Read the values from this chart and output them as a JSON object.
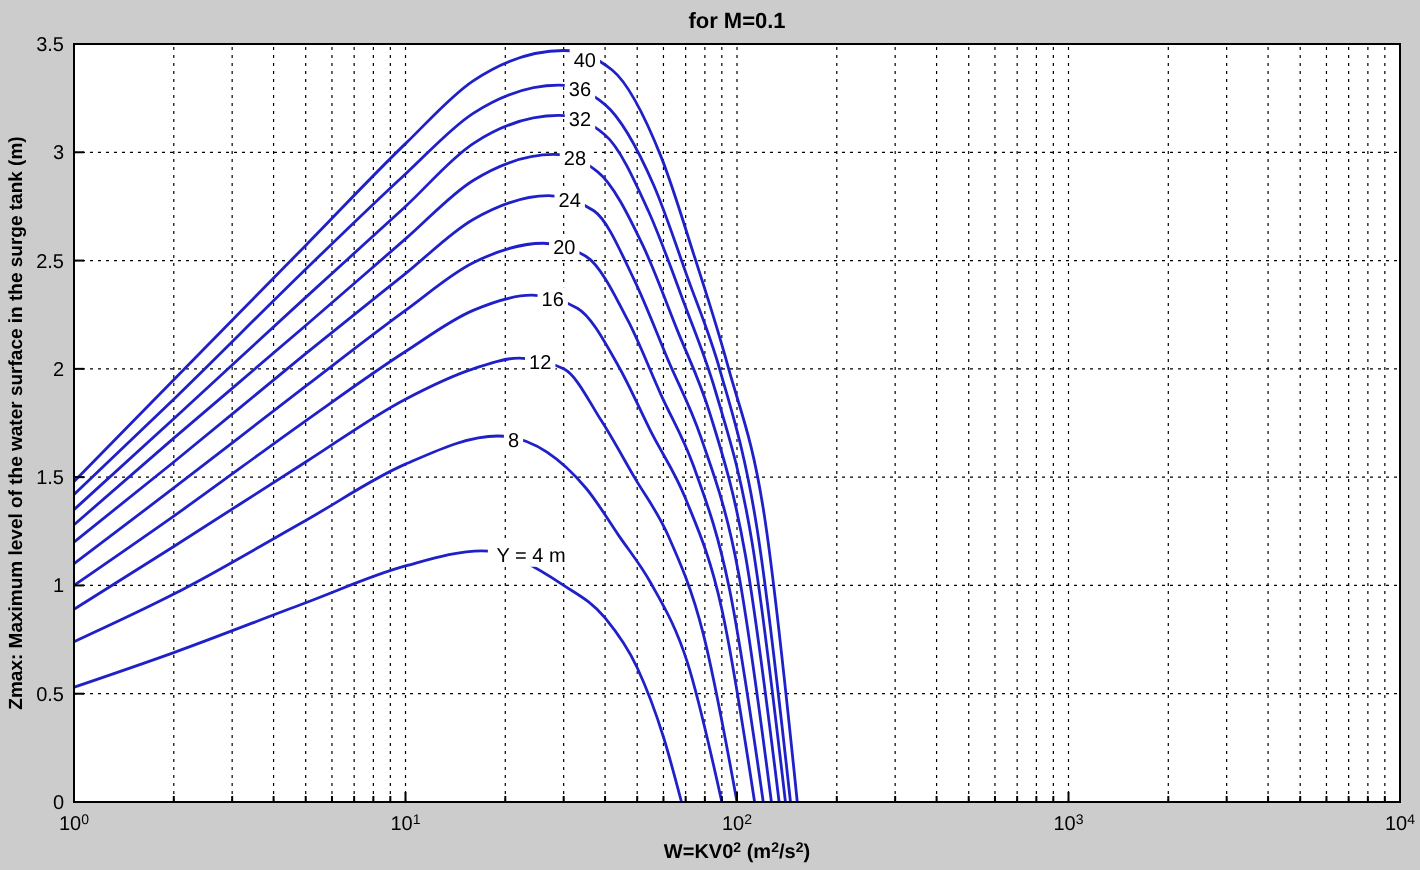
{
  "chart_data": {
    "type": "line",
    "title": "for M=0.1",
    "xlabel": "W=KV0$^{2}$ (m$^{2}$/s$^{2}$)",
    "ylabel": "Zmax: Maximum level of the water surface in the surge tank (m)",
    "log": "x",
    "grid": true,
    "xlim": [
      1,
      10000
    ],
    "ylim": [
      0,
      3.5
    ],
    "xticks": [
      {
        "value": 1,
        "label": "10$^{0}$"
      },
      {
        "value": 2,
        "label": null
      },
      {
        "value": 3,
        "label": null
      },
      {
        "value": 4,
        "label": null
      },
      {
        "value": 5,
        "label": null
      },
      {
        "value": 6,
        "label": null
      },
      {
        "value": 7,
        "label": null
      },
      {
        "value": 8,
        "label": null
      },
      {
        "value": 9,
        "label": null
      },
      {
        "value": 10,
        "label": "10$^{1}$"
      },
      {
        "value": 20,
        "label": null
      },
      {
        "value": 30,
        "label": null
      },
      {
        "value": 40,
        "label": null
      },
      {
        "value": 50,
        "label": null
      },
      {
        "value": 60,
        "label": null
      },
      {
        "value": 70,
        "label": null
      },
      {
        "value": 80,
        "label": null
      },
      {
        "value": 90,
        "label": null
      },
      {
        "value": 100,
        "label": "10$^{2}$"
      },
      {
        "value": 200,
        "label": null
      },
      {
        "value": 300,
        "label": null
      },
      {
        "value": 400,
        "label": null
      },
      {
        "value": 500,
        "label": null
      },
      {
        "value": 600,
        "label": null
      },
      {
        "value": 700,
        "label": null
      },
      {
        "value": 800,
        "label": null
      },
      {
        "value": 900,
        "label": null
      },
      {
        "value": 1000,
        "label": "10$^{3}$"
      },
      {
        "value": 2000,
        "label": null
      },
      {
        "value": 3000,
        "label": null
      },
      {
        "value": 4000,
        "label": null
      },
      {
        "value": 5000,
        "label": null
      },
      {
        "value": 6000,
        "label": null
      },
      {
        "value": 7000,
        "label": null
      },
      {
        "value": 8000,
        "label": null
      },
      {
        "value": 9000,
        "label": null
      },
      {
        "value": 10000,
        "label": "10$^{4}$"
      }
    ],
    "yticks": [
      0,
      0.5,
      1,
      1.5,
      2,
      2.5,
      3,
      3.5
    ],
    "series": [
      {
        "name": "Y = 4 m",
        "color": "#2020c8",
        "x": [
          1,
          2,
          5,
          10,
          17,
          30,
          40,
          50,
          60,
          68
        ],
        "values": [
          0.53,
          0.69,
          0.92,
          1.09,
          1.16,
          1.0,
          0.85,
          0.62,
          0.3,
          0
        ]
      },
      {
        "name": "8",
        "color": "#2020c8",
        "x": [
          1,
          2,
          5,
          10,
          19,
          35,
          44,
          55,
          71,
          90
        ],
        "values": [
          0.74,
          0.96,
          1.3,
          1.56,
          1.69,
          1.45,
          1.23,
          1.01,
          0.64,
          0
        ]
      },
      {
        "name": "12",
        "color": "#2020c8",
        "x": [
          1,
          2,
          5,
          10,
          16,
          22,
          30,
          39,
          49,
          62,
          79,
          100
        ],
        "values": [
          0.89,
          1.18,
          1.57,
          1.86,
          2.0,
          2.05,
          2.0,
          1.76,
          1.5,
          1.23,
          0.78,
          0
        ]
      },
      {
        "name": "16",
        "color": "#2020c8",
        "x": [
          1,
          2,
          5,
          10,
          16,
          24,
          33,
          44,
          55,
          70,
          90,
          113
        ],
        "values": [
          1.0,
          1.32,
          1.76,
          2.08,
          2.27,
          2.34,
          2.28,
          2.01,
          1.71,
          1.4,
          0.89,
          0
        ]
      },
      {
        "name": "20",
        "color": "#2020c8",
        "x": [
          1,
          2,
          5,
          10,
          16,
          26,
          35,
          47,
          59,
          74,
          95,
          120
        ],
        "values": [
          1.1,
          1.45,
          1.92,
          2.27,
          2.49,
          2.58,
          2.52,
          2.22,
          1.88,
          1.55,
          0.98,
          0
        ]
      },
      {
        "name": "24",
        "color": "#2020c8",
        "x": [
          1,
          2,
          5,
          10,
          16,
          27,
          37,
          49,
          62,
          78,
          101,
          127
        ],
        "values": [
          1.2,
          1.57,
          2.07,
          2.44,
          2.69,
          2.8,
          2.73,
          2.41,
          2.04,
          1.68,
          1.06,
          0
        ]
      },
      {
        "name": "28",
        "color": "#2020c8",
        "x": [
          1,
          2,
          5,
          10,
          16,
          28,
          38,
          52,
          66,
          83,
          106,
          134
        ],
        "values": [
          1.28,
          1.68,
          2.2,
          2.6,
          2.87,
          2.99,
          2.91,
          2.57,
          2.18,
          1.79,
          1.14,
          0
        ]
      },
      {
        "name": "32",
        "color": "#2020c8",
        "x": [
          1,
          2,
          5,
          10,
          16,
          29,
          40,
          54,
          69,
          86,
          111,
          140
        ],
        "values": [
          1.35,
          1.77,
          2.33,
          2.75,
          3.04,
          3.17,
          3.08,
          2.73,
          2.31,
          1.9,
          1.2,
          0
        ]
      },
      {
        "name": "36",
        "color": "#2020c8",
        "x": [
          1,
          2,
          5,
          10,
          16,
          29,
          40,
          56,
          71,
          89,
          115,
          145
        ],
        "values": [
          1.42,
          1.86,
          2.46,
          2.9,
          3.18,
          3.31,
          3.22,
          2.85,
          2.42,
          1.99,
          1.26,
          0
        ]
      },
      {
        "name": "40",
        "color": "#2020c8",
        "x": [
          1,
          2,
          5,
          10,
          16,
          30,
          42,
          59,
          74,
          94,
          121,
          152
        ],
        "values": [
          1.48,
          1.95,
          2.57,
          3.04,
          3.33,
          3.47,
          3.38,
          2.98,
          2.53,
          2.01,
          1.32,
          0
        ]
      }
    ]
  }
}
